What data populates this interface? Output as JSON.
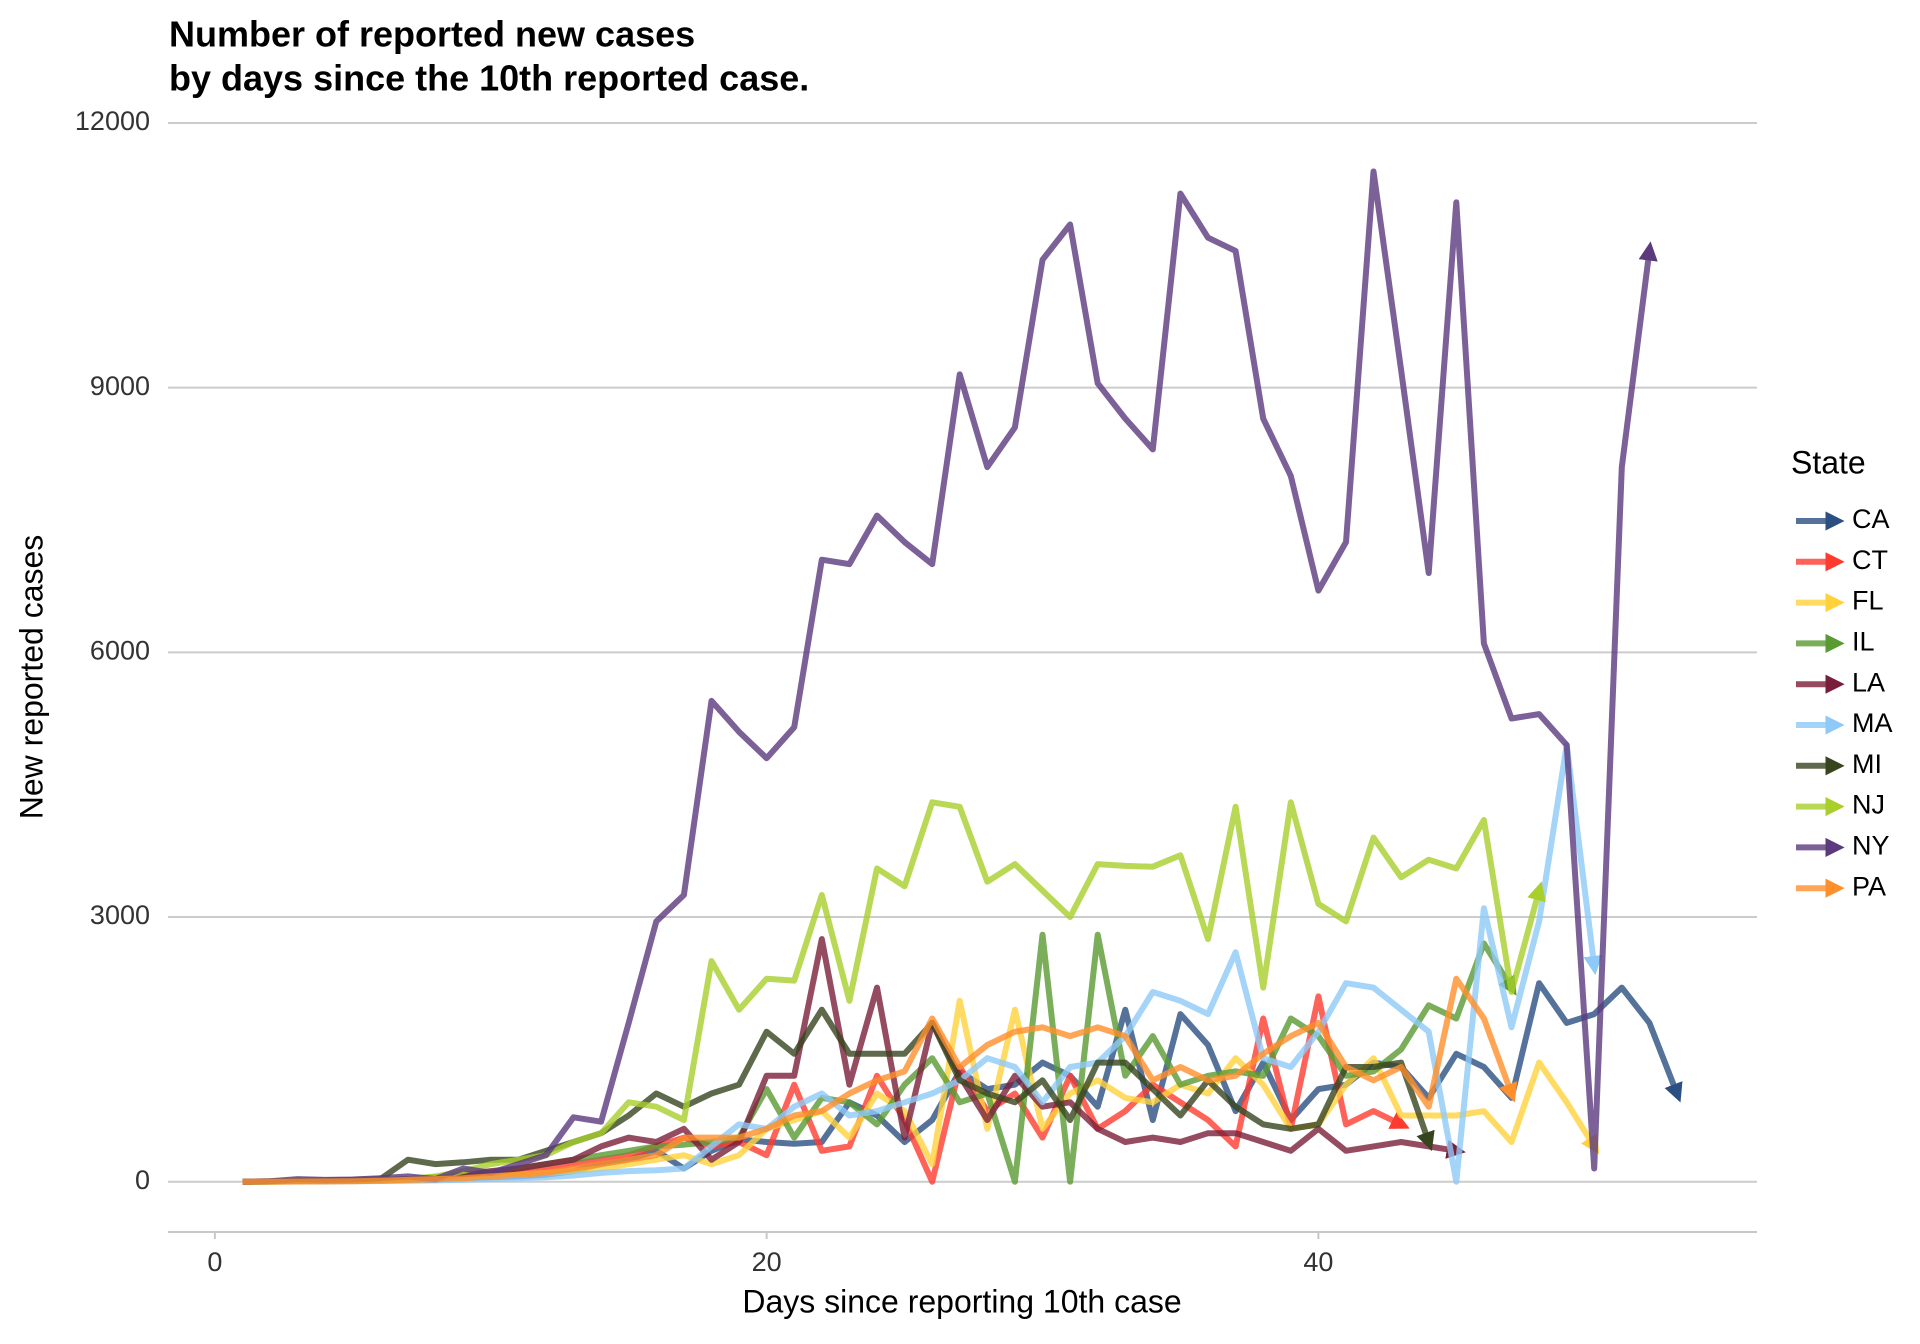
{
  "chart_data": {
    "type": "line",
    "title": [
      "Number of reported new cases",
      "by days since the 10th reported case."
    ],
    "x_label": "Days since reporting 10th case",
    "y_label": "New reported cases",
    "legend_title": "State",
    "legend_position": "right",
    "grid": true,
    "arrows": true,
    "xlim": [
      -1.7,
      55.9
    ],
    "xticks": [
      0,
      20,
      40
    ],
    "ylim": [
      -570,
      12000
    ],
    "yticks": [
      0,
      3000,
      6000,
      9000,
      12000
    ],
    "x": [
      1,
      2,
      3,
      4,
      5,
      6,
      7,
      8,
      9,
      10,
      11,
      12,
      13,
      14,
      15,
      16,
      17,
      18,
      19,
      20,
      21,
      22,
      23,
      24,
      25,
      26,
      27,
      28,
      29,
      30,
      31,
      32,
      33,
      34,
      35,
      36,
      37,
      38,
      39,
      40,
      41,
      42,
      43,
      44,
      45,
      46,
      47,
      48,
      49,
      50,
      51,
      52,
      53
    ],
    "series": [
      {
        "name": "CA",
        "color": "#2b4f81",
        "values": [
          0,
          2,
          5,
          5,
          10,
          15,
          20,
          30,
          40,
          50,
          60,
          80,
          120,
          200,
          250,
          350,
          150,
          350,
          480,
          450,
          430,
          450,
          900,
          750,
          450,
          700,
          1250,
          1050,
          1100,
          1350,
          1200,
          850,
          1950,
          700,
          1900,
          1550,
          800,
          1350,
          700,
          1050,
          1100,
          1350,
          1300,
          950,
          1450,
          1300,
          950,
          2250,
          1800,
          1900,
          2200,
          1800,
          1000
        ]
      },
      {
        "name": "CT",
        "color": "#ff3b2f",
        "values": [
          0,
          2,
          3,
          5,
          10,
          20,
          30,
          50,
          60,
          80,
          100,
          150,
          200,
          250,
          300,
          400,
          500,
          400,
          450,
          300,
          1100,
          350,
          400,
          1200,
          700,
          0,
          1300,
          800,
          1000,
          500,
          1200,
          600,
          800,
          1100,
          900,
          700,
          400,
          1850,
          600,
          2100,
          650,
          800,
          650,
          null,
          null,
          null,
          null,
          null,
          null,
          null,
          null,
          null,
          null
        ]
      },
      {
        "name": "FL",
        "color": "#ffd23c",
        "values": [
          0,
          1,
          2,
          5,
          8,
          10,
          15,
          20,
          40,
          60,
          80,
          100,
          120,
          150,
          200,
          250,
          300,
          200,
          300,
          600,
          700,
          800,
          500,
          1000,
          800,
          200,
          2050,
          600,
          1950,
          600,
          1000,
          1150,
          950,
          900,
          1100,
          1000,
          1400,
          1100,
          600,
          650,
          1100,
          1400,
          750,
          750,
          750,
          800,
          450,
          1350,
          900,
          400,
          null,
          null,
          null
        ]
      },
      {
        "name": "IL",
        "color": "#5a9a32",
        "values": [
          0,
          2,
          5,
          8,
          10,
          20,
          30,
          50,
          80,
          100,
          150,
          200,
          250,
          300,
          350,
          400,
          420,
          450,
          500,
          1050,
          500,
          950,
          900,
          650,
          1100,
          1400,
          900,
          1000,
          0,
          2800,
          0,
          2800,
          1200,
          1650,
          1100,
          1200,
          1250,
          1200,
          1850,
          1650,
          1200,
          1250,
          1500,
          2000,
          1850,
          2700,
          2200,
          null,
          null,
          null,
          null,
          null,
          null
        ]
      },
      {
        "name": "LA",
        "color": "#7a1f3a",
        "values": [
          0,
          2,
          5,
          8,
          10,
          20,
          30,
          20,
          80,
          120,
          150,
          200,
          250,
          400,
          500,
          450,
          600,
          250,
          450,
          1200,
          1200,
          2750,
          1100,
          2200,
          500,
          1800,
          1200,
          700,
          1200,
          850,
          900,
          600,
          450,
          500,
          450,
          550,
          550,
          450,
          350,
          600,
          350,
          400,
          450,
          400,
          350,
          null,
          null,
          null,
          null,
          null,
          null,
          null,
          null
        ]
      },
      {
        "name": "MA",
        "color": "#8ec9f7",
        "values": [
          0,
          1,
          2,
          3,
          5,
          8,
          10,
          15,
          20,
          30,
          40,
          50,
          70,
          100,
          120,
          130,
          150,
          400,
          650,
          600,
          850,
          1000,
          750,
          800,
          900,
          1000,
          1150,
          1400,
          1300,
          900,
          1300,
          1350,
          1650,
          2150,
          2050,
          1900,
          2600,
          1400,
          1300,
          1700,
          2250,
          2200,
          1950,
          1700,
          0,
          3100,
          1750,
          2950,
          4950,
          2450,
          null,
          null,
          null
        ]
      },
      {
        "name": "MI",
        "color": "#37451f",
        "values": [
          0,
          5,
          10,
          15,
          20,
          30,
          250,
          200,
          220,
          250,
          250,
          350,
          450,
          550,
          750,
          1000,
          850,
          1000,
          1100,
          1700,
          1450,
          1950,
          1450,
          1450,
          1450,
          1800,
          1150,
          1000,
          900,
          1150,
          700,
          1350,
          1350,
          1050,
          750,
          1150,
          850,
          650,
          600,
          650,
          1300,
          1300,
          1350,
          450,
          null,
          null,
          null,
          null,
          null,
          null,
          null,
          null,
          null
        ]
      },
      {
        "name": "NJ",
        "color": "#a8cf2c",
        "values": [
          0,
          0,
          5,
          10,
          15,
          20,
          30,
          60,
          120,
          200,
          250,
          300,
          450,
          550,
          900,
          850,
          700,
          2500,
          1950,
          2300,
          2280,
          3250,
          2050,
          3550,
          3350,
          4300,
          4250,
          3400,
          3600,
          3300,
          3000,
          3600,
          3580,
          3570,
          3700,
          2750,
          4250,
          2200,
          4300,
          3150,
          2950,
          3900,
          3450,
          3650,
          3550,
          4100,
          2150,
          3300,
          null,
          null,
          null,
          null,
          null
        ]
      },
      {
        "name": "NY",
        "color": "#5b3a7e",
        "values": [
          0,
          5,
          30,
          20,
          25,
          40,
          60,
          30,
          150,
          100,
          200,
          300,
          730,
          680,
          1800,
          2950,
          3250,
          5450,
          5100,
          4800,
          5150,
          7050,
          7000,
          7550,
          7250,
          7000,
          9150,
          8100,
          8550,
          10450,
          10850,
          9050,
          8650,
          8300,
          11200,
          10700,
          10550,
          8650,
          8000,
          6700,
          7250,
          11450,
          9200,
          6900,
          11100,
          6100,
          5250,
          5300,
          4950,
          150,
          8100,
          10550,
          null
        ]
      },
      {
        "name": "PA",
        "color": "#ff8f2a",
        "values": [
          0,
          1,
          2,
          3,
          5,
          10,
          20,
          30,
          40,
          60,
          80,
          100,
          150,
          200,
          250,
          300,
          500,
          500,
          500,
          600,
          750,
          800,
          1000,
          1150,
          1250,
          1850,
          1300,
          1550,
          1700,
          1750,
          1650,
          1750,
          1650,
          1150,
          1300,
          1150,
          1200,
          1450,
          1650,
          1800,
          1300,
          1150,
          1300,
          850,
          2300,
          1850,
          1000,
          null,
          null,
          null,
          null,
          null,
          null
        ]
      }
    ]
  }
}
